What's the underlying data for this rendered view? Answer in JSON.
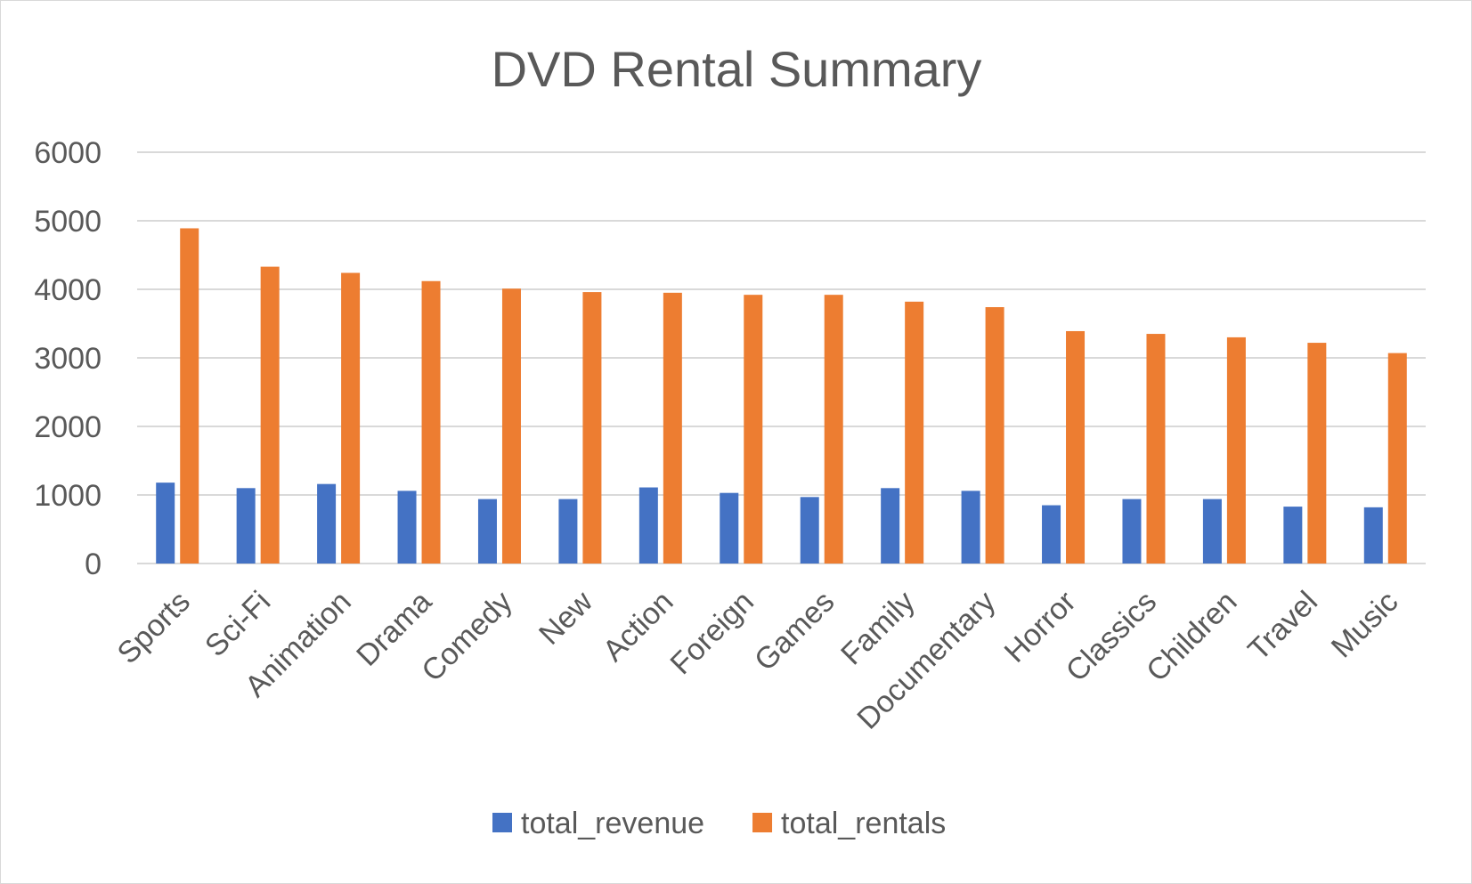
{
  "chart_data": {
    "type": "bar",
    "title": "DVD Rental Summary",
    "xlabel": "",
    "ylabel": "",
    "ylim": [
      0,
      6000
    ],
    "yticks": [
      0,
      1000,
      2000,
      3000,
      4000,
      5000,
      6000
    ],
    "grid": true,
    "legend_position": "bottom",
    "categories": [
      "Sports",
      "Sci-Fi",
      "Animation",
      "Drama",
      "Comedy",
      "New",
      "Action",
      "Foreign",
      "Games",
      "Family",
      "Documentary",
      "Horror",
      "Classics",
      "Children",
      "Travel",
      "Music"
    ],
    "series": [
      {
        "name": "total_revenue",
        "color": "#4472C4",
        "values": [
          1180,
          1100,
          1160,
          1060,
          940,
          940,
          1110,
          1030,
          970,
          1100,
          1060,
          850,
          940,
          940,
          830,
          820
        ]
      },
      {
        "name": "total_rentals",
        "color": "#ED7D31",
        "values": [
          4890,
          4330,
          4240,
          4120,
          4010,
          3960,
          3950,
          3920,
          3920,
          3820,
          3740,
          3390,
          3350,
          3300,
          3220,
          3070
        ]
      }
    ]
  }
}
